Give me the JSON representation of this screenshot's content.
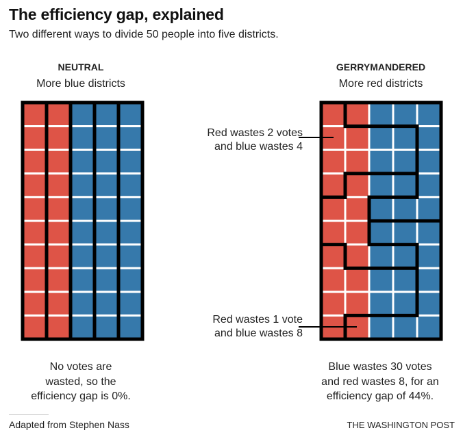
{
  "title": "The efficiency gap, explained",
  "subtitle": "Two different ways to divide 50 people into five districts.",
  "colors": {
    "red": "#de5447",
    "blue": "#3679ab",
    "border": "#000000"
  },
  "neutral": {
    "heading": "NEUTRAL",
    "subheading": "More blue districts",
    "caption_lines": [
      "No votes are",
      "wasted, so the",
      "efficiency gap is 0%."
    ],
    "red_columns": 2,
    "blue_columns": 3
  },
  "gerrymandered": {
    "heading": "GERRYMANDERED",
    "subheading": "More red districts",
    "caption_lines": [
      "Blue wastes 30 votes",
      "and red wastes 8, for an",
      "efficiency gap of 44%."
    ],
    "annotations": [
      {
        "lines": [
          "Red wastes 2 votes",
          "and blue wastes 4"
        ]
      },
      {
        "lines": [
          "Red wastes 1 vote",
          "and blue wastes 8"
        ]
      }
    ]
  },
  "footer": {
    "credit": "Adapted from Stephen Nass",
    "brand": "THE WASHINGTON POST"
  }
}
